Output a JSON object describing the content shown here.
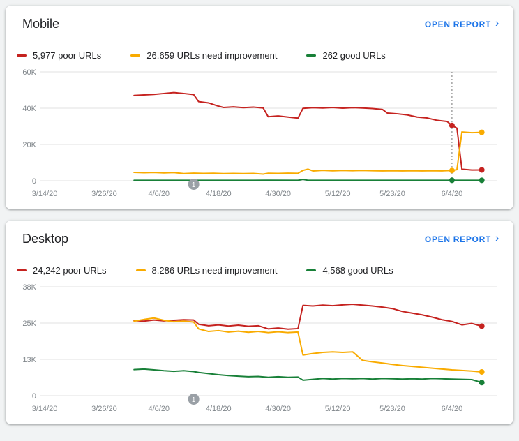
{
  "theme": {
    "accent": "#1a73e8",
    "background": "#f1f3f4",
    "grid": "#e0e0e0",
    "tick_label": "#80868b",
    "poor_color": "#c5221f",
    "improve_color": "#f9ab00",
    "good_color": "#188038"
  },
  "cards": [
    {
      "title": "Mobile",
      "action": {
        "label": "OPEN REPORT",
        "chevron": "›"
      },
      "legend": [
        {
          "label": "5,977 poor URLs",
          "color": "#c5221f"
        },
        {
          "label": "26,659 URLs need improvement",
          "color": "#f9ab00"
        },
        {
          "label": "262 good URLs",
          "color": "#188038"
        }
      ]
    },
    {
      "title": "Desktop",
      "action": {
        "label": "OPEN REPORT",
        "chevron": "›"
      },
      "legend": [
        {
          "label": "24,242 poor URLs",
          "color": "#c5221f"
        },
        {
          "label": "8,286 URLs need improvement",
          "color": "#f9ab00"
        },
        {
          "label": "4,568 good URLs",
          "color": "#188038"
        }
      ]
    }
  ],
  "chart_data": [
    {
      "type": "line",
      "title": "Mobile URL status over time",
      "x_domain_days": [
        0,
        91
      ],
      "x_ticks": [
        {
          "day": 0,
          "label": "3/14/20"
        },
        {
          "day": 12,
          "label": "3/26/20"
        },
        {
          "day": 23,
          "label": "4/6/20"
        },
        {
          "day": 35,
          "label": "4/18/20"
        },
        {
          "day": 47,
          "label": "4/30/20"
        },
        {
          "day": 59,
          "label": "5/12/20"
        },
        {
          "day": 70,
          "label": "5/23/20"
        },
        {
          "day": 82,
          "label": "6/4/20"
        }
      ],
      "y_max": 60000,
      "y_ticks": [
        {
          "value": 0,
          "label": "0"
        },
        {
          "value": 20000,
          "label": "20K"
        },
        {
          "value": 40000,
          "label": "40K"
        },
        {
          "value": 60000,
          "label": "60K"
        }
      ],
      "series": [
        {
          "id": "poor",
          "name": "Poor URLs",
          "color": "#c5221f",
          "dot_days": [
            82,
            88
          ],
          "points": [
            [
              18,
              47000
            ],
            [
              20,
              47300
            ],
            [
              22,
              47600
            ],
            [
              24,
              48100
            ],
            [
              26,
              48600
            ],
            [
              28,
              48100
            ],
            [
              30,
              47500
            ],
            [
              31,
              43600
            ],
            [
              33,
              42900
            ],
            [
              35,
              41100
            ],
            [
              36,
              40400
            ],
            [
              38,
              40700
            ],
            [
              40,
              40300
            ],
            [
              42,
              40600
            ],
            [
              44,
              40100
            ],
            [
              45,
              35300
            ],
            [
              47,
              35700
            ],
            [
              49,
              35100
            ],
            [
              51,
              34500
            ],
            [
              52,
              39900
            ],
            [
              54,
              40300
            ],
            [
              56,
              40100
            ],
            [
              58,
              40400
            ],
            [
              60,
              40000
            ],
            [
              62,
              40300
            ],
            [
              64,
              40100
            ],
            [
              66,
              39800
            ],
            [
              68,
              39300
            ],
            [
              69,
              37300
            ],
            [
              71,
              36900
            ],
            [
              73,
              36300
            ],
            [
              75,
              35100
            ],
            [
              77,
              34600
            ],
            [
              79,
              33300
            ],
            [
              81,
              32700
            ],
            [
              82,
              30500
            ],
            [
              83,
              29000
            ],
            [
              84,
              6400
            ],
            [
              86,
              5900
            ],
            [
              88,
              5977
            ]
          ]
        },
        {
          "id": "improve",
          "name": "URLs need improvement",
          "color": "#f9ab00",
          "dot_days": [
            82,
            88
          ],
          "points": [
            [
              18,
              4600
            ],
            [
              20,
              4400
            ],
            [
              22,
              4550
            ],
            [
              24,
              4350
            ],
            [
              26,
              4500
            ],
            [
              28,
              3950
            ],
            [
              30,
              4200
            ],
            [
              32,
              4050
            ],
            [
              34,
              4150
            ],
            [
              36,
              3950
            ],
            [
              38,
              4050
            ],
            [
              40,
              3950
            ],
            [
              42,
              4050
            ],
            [
              44,
              3650
            ],
            [
              45,
              4150
            ],
            [
              47,
              4050
            ],
            [
              49,
              4200
            ],
            [
              51,
              4100
            ],
            [
              52,
              5700
            ],
            [
              53,
              6400
            ],
            [
              54,
              5400
            ],
            [
              56,
              5700
            ],
            [
              58,
              5500
            ],
            [
              60,
              5650
            ],
            [
              62,
              5550
            ],
            [
              64,
              5650
            ],
            [
              66,
              5550
            ],
            [
              68,
              5450
            ],
            [
              70,
              5550
            ],
            [
              72,
              5450
            ],
            [
              74,
              5550
            ],
            [
              76,
              5450
            ],
            [
              78,
              5550
            ],
            [
              80,
              5450
            ],
            [
              82,
              5650
            ],
            [
              83,
              6100
            ],
            [
              84,
              26900
            ],
            [
              86,
              26500
            ],
            [
              88,
              26659
            ]
          ]
        },
        {
          "id": "good",
          "name": "Good URLs",
          "color": "#188038",
          "dot_days": [
            82,
            88
          ],
          "points": [
            [
              18,
              260
            ],
            [
              24,
              250
            ],
            [
              30,
              260
            ],
            [
              36,
              250
            ],
            [
              42,
              260
            ],
            [
              45,
              280
            ],
            [
              51,
              250
            ],
            [
              52,
              750
            ],
            [
              53,
              260
            ],
            [
              58,
              250
            ],
            [
              64,
              260
            ],
            [
              70,
              250
            ],
            [
              76,
              260
            ],
            [
              82,
              250
            ],
            [
              88,
              262
            ]
          ]
        }
      ],
      "annotations": {
        "vline_day": 82,
        "axis_badge": {
          "day": 30,
          "label": "1"
        }
      }
    },
    {
      "type": "line",
      "title": "Desktop URL status over time",
      "x_domain_days": [
        0,
        91
      ],
      "x_ticks": [
        {
          "day": 0,
          "label": "3/14/20"
        },
        {
          "day": 12,
          "label": "3/26/20"
        },
        {
          "day": 23,
          "label": "4/6/20"
        },
        {
          "day": 35,
          "label": "4/18/20"
        },
        {
          "day": 47,
          "label": "4/30/20"
        },
        {
          "day": 59,
          "label": "5/12/20"
        },
        {
          "day": 70,
          "label": "5/23/20"
        },
        {
          "day": 82,
          "label": "6/4/20"
        }
      ],
      "y_max": 38000,
      "y_ticks": [
        {
          "value": 0,
          "label": "0"
        },
        {
          "value": 12667,
          "label": "13K"
        },
        {
          "value": 25333,
          "label": "25K"
        },
        {
          "value": 38000,
          "label": "38K"
        }
      ],
      "series": [
        {
          "id": "poor",
          "name": "Poor URLs",
          "color": "#c5221f",
          "dot_days": [
            88
          ],
          "points": [
            [
              18,
              26200
            ],
            [
              20,
              26000
            ],
            [
              22,
              26400
            ],
            [
              24,
              26100
            ],
            [
              26,
              26300
            ],
            [
              28,
              26500
            ],
            [
              30,
              26400
            ],
            [
              31,
              24900
            ],
            [
              33,
              24400
            ],
            [
              35,
              24700
            ],
            [
              37,
              24300
            ],
            [
              39,
              24600
            ],
            [
              41,
              24200
            ],
            [
              43,
              24400
            ],
            [
              45,
              23300
            ],
            [
              47,
              23600
            ],
            [
              49,
              23200
            ],
            [
              51,
              23400
            ],
            [
              52,
              31500
            ],
            [
              54,
              31300
            ],
            [
              56,
              31600
            ],
            [
              58,
              31400
            ],
            [
              60,
              31700
            ],
            [
              62,
              31900
            ],
            [
              64,
              31600
            ],
            [
              66,
              31300
            ],
            [
              68,
              30900
            ],
            [
              70,
              30400
            ],
            [
              72,
              29400
            ],
            [
              74,
              28800
            ],
            [
              76,
              28200
            ],
            [
              78,
              27400
            ],
            [
              80,
              26500
            ],
            [
              82,
              25900
            ],
            [
              84,
              24700
            ],
            [
              86,
              25200
            ],
            [
              88,
              24242
            ]
          ]
        },
        {
          "id": "improve",
          "name": "URLs need improvement",
          "color": "#f9ab00",
          "dot_days": [
            88
          ],
          "points": [
            [
              18,
              26000
            ],
            [
              20,
              26600
            ],
            [
              22,
              27100
            ],
            [
              24,
              26300
            ],
            [
              26,
              25800
            ],
            [
              28,
              26000
            ],
            [
              30,
              25700
            ],
            [
              31,
              23300
            ],
            [
              33,
              22400
            ],
            [
              35,
              22700
            ],
            [
              37,
              22200
            ],
            [
              39,
              22500
            ],
            [
              41,
              22100
            ],
            [
              43,
              22400
            ],
            [
              45,
              22000
            ],
            [
              47,
              22300
            ],
            [
              49,
              22000
            ],
            [
              51,
              22200
            ],
            [
              52,
              14200
            ],
            [
              54,
              14700
            ],
            [
              56,
              15100
            ],
            [
              58,
              15300
            ],
            [
              60,
              15100
            ],
            [
              62,
              15300
            ],
            [
              64,
              12300
            ],
            [
              66,
              11800
            ],
            [
              68,
              11400
            ],
            [
              70,
              10900
            ],
            [
              72,
              10500
            ],
            [
              74,
              10200
            ],
            [
              76,
              9900
            ],
            [
              78,
              9600
            ],
            [
              80,
              9300
            ],
            [
              82,
              9000
            ],
            [
              84,
              8800
            ],
            [
              86,
              8600
            ],
            [
              88,
              8286
            ]
          ]
        },
        {
          "id": "good",
          "name": "Good URLs",
          "color": "#188038",
          "dot_days": [
            88
          ],
          "points": [
            [
              18,
              9100
            ],
            [
              20,
              9300
            ],
            [
              22,
              9000
            ],
            [
              24,
              8700
            ],
            [
              26,
              8500
            ],
            [
              28,
              8700
            ],
            [
              30,
              8400
            ],
            [
              31,
              8100
            ],
            [
              33,
              7700
            ],
            [
              35,
              7300
            ],
            [
              37,
              7000
            ],
            [
              39,
              6800
            ],
            [
              41,
              6600
            ],
            [
              43,
              6700
            ],
            [
              45,
              6400
            ],
            [
              47,
              6600
            ],
            [
              49,
              6400
            ],
            [
              51,
              6500
            ],
            [
              52,
              5400
            ],
            [
              54,
              5700
            ],
            [
              56,
              6000
            ],
            [
              58,
              5800
            ],
            [
              60,
              6000
            ],
            [
              62,
              5900
            ],
            [
              64,
              6000
            ],
            [
              66,
              5800
            ],
            [
              68,
              6000
            ],
            [
              70,
              5900
            ],
            [
              72,
              5800
            ],
            [
              74,
              5900
            ],
            [
              76,
              5800
            ],
            [
              78,
              6000
            ],
            [
              80,
              5900
            ],
            [
              82,
              5800
            ],
            [
              84,
              5700
            ],
            [
              86,
              5600
            ],
            [
              88,
              4568
            ]
          ]
        }
      ],
      "annotations": {
        "axis_badge": {
          "day": 30,
          "label": "1"
        }
      }
    }
  ]
}
